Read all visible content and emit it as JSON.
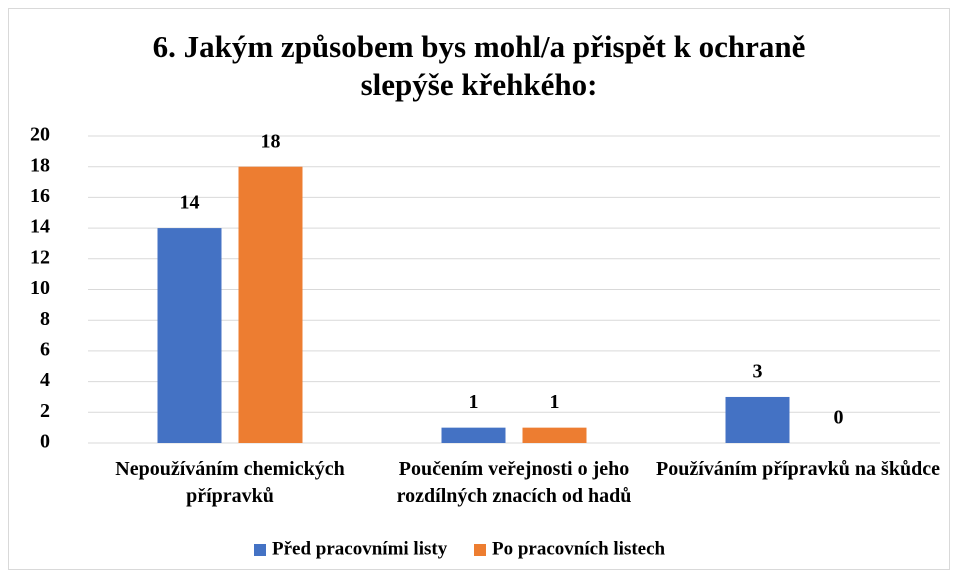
{
  "chart_data": {
    "type": "bar",
    "title": "6. Jakým způsobem bys mohl/a přispět k ochraně slepýše křehkého:",
    "categories": [
      "Nepoužíváním chemických přípravků",
      "Poučením veřejnosti o jeho rozdílných znacích od hadů",
      "Používáním přípravků na škůdce"
    ],
    "series": [
      {
        "name": "Před pracovními listy",
        "color": "#4472c4",
        "values": [
          14,
          1,
          3
        ]
      },
      {
        "name": "Po pracovních listech",
        "color": "#ed7d31",
        "values": [
          18,
          1,
          0
        ]
      }
    ],
    "ylim": [
      0,
      20
    ],
    "yticks": [
      0,
      2,
      4,
      6,
      8,
      10,
      12,
      14,
      16,
      18,
      20
    ],
    "grid": true,
    "legend": "bottom"
  }
}
